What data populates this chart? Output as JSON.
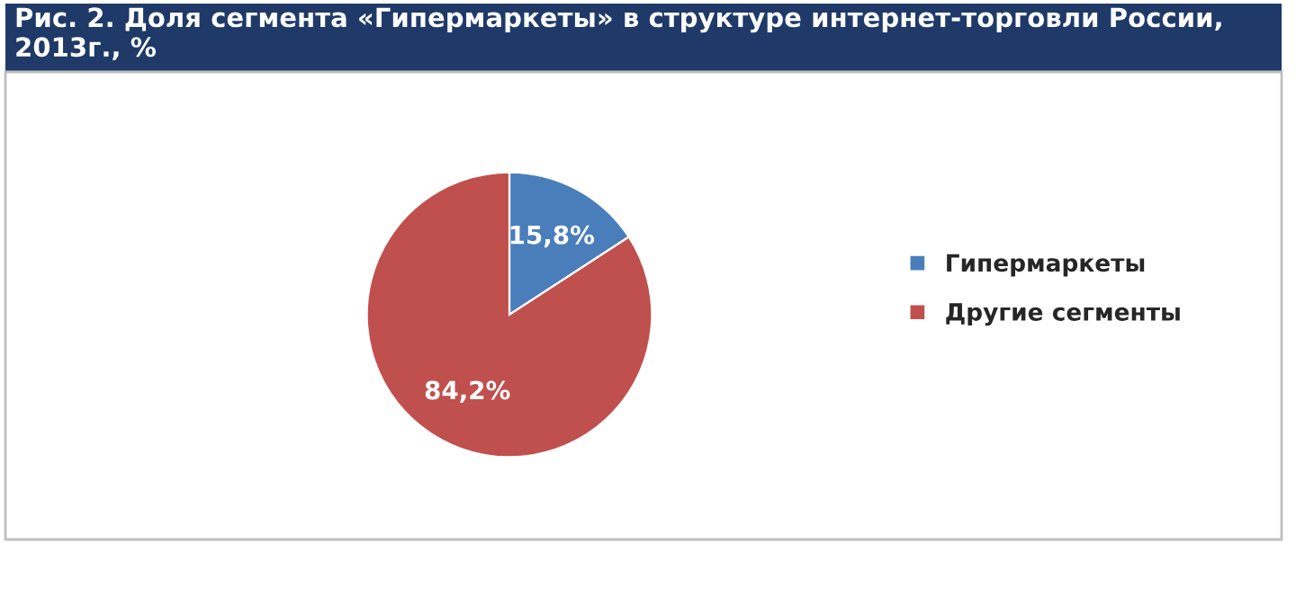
{
  "chart_data": {
    "type": "pie",
    "title": "Рис. 2. Доля сегмента «Гипермаркеты» в структуре интернет-торговли России, 2013г., %",
    "categories": [
      "Гипермаркеты",
      "Другие сегменты"
    ],
    "values": [
      15.8,
      84.2
    ],
    "colors": [
      "#4a7ebb",
      "#c0504d"
    ],
    "value_labels": [
      "15,8%",
      "84,2%"
    ],
    "legend": "right"
  }
}
